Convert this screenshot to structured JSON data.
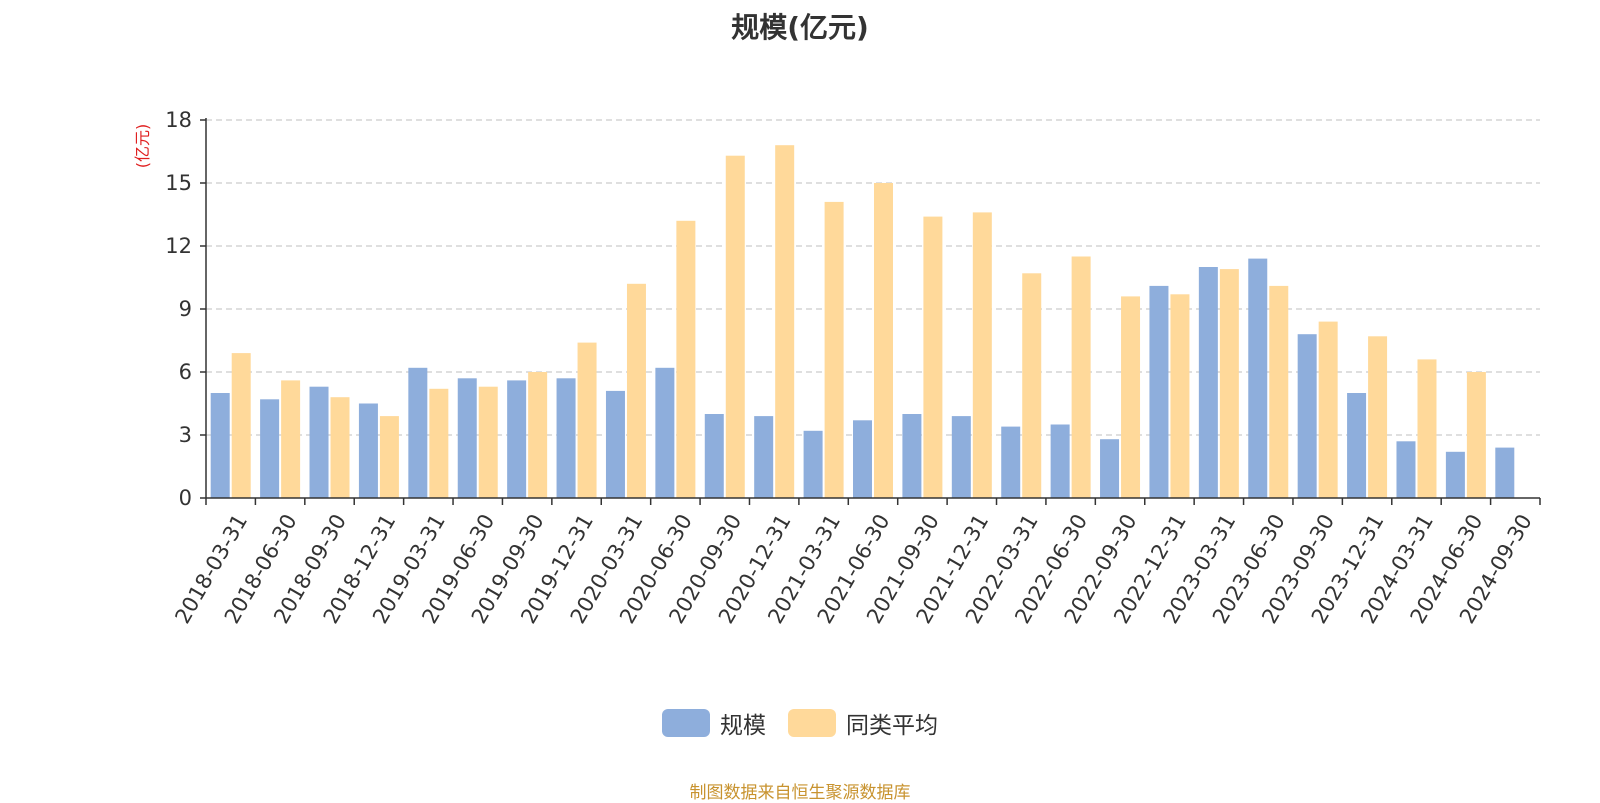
{
  "chart_data": {
    "type": "bar",
    "title": "规模(亿元)",
    "ylabel": "(亿元)",
    "ylim": [
      0,
      18
    ],
    "yticks": [
      0,
      3,
      6,
      9,
      12,
      15,
      18
    ],
    "grid": true,
    "legend_position": "bottom",
    "categories": [
      "2018-03-31",
      "2018-06-30",
      "2018-09-30",
      "2018-12-31",
      "2019-03-31",
      "2019-06-30",
      "2019-09-30",
      "2019-12-31",
      "2020-03-31",
      "2020-06-30",
      "2020-09-30",
      "2020-12-31",
      "2021-03-31",
      "2021-06-30",
      "2021-09-30",
      "2021-12-31",
      "2022-03-31",
      "2022-06-30",
      "2022-09-30",
      "2022-12-31",
      "2023-03-31",
      "2023-06-30",
      "2023-09-30",
      "2023-12-31",
      "2024-03-31",
      "2024-06-30",
      "2024-09-30"
    ],
    "series": [
      {
        "name": "规模",
        "color": "#8eaedc",
        "values": [
          5.0,
          4.7,
          5.3,
          4.5,
          6.2,
          5.7,
          5.6,
          5.7,
          5.1,
          6.2,
          4.0,
          3.9,
          3.2,
          3.7,
          4.0,
          3.9,
          3.4,
          3.5,
          2.8,
          10.1,
          11.0,
          11.4,
          7.8,
          5.0,
          2.7,
          2.2,
          2.4
        ]
      },
      {
        "name": "同类平均",
        "color": "#ffd99a",
        "values": [
          6.9,
          5.6,
          4.8,
          3.9,
          5.2,
          5.3,
          6.0,
          7.4,
          10.2,
          13.2,
          16.3,
          16.8,
          14.1,
          15.0,
          13.4,
          13.6,
          10.7,
          11.5,
          9.6,
          9.7,
          10.9,
          10.1,
          8.4,
          7.7,
          6.6,
          6.0,
          null
        ]
      }
    ]
  },
  "source_text": "制图数据来自恒生聚源数据库"
}
